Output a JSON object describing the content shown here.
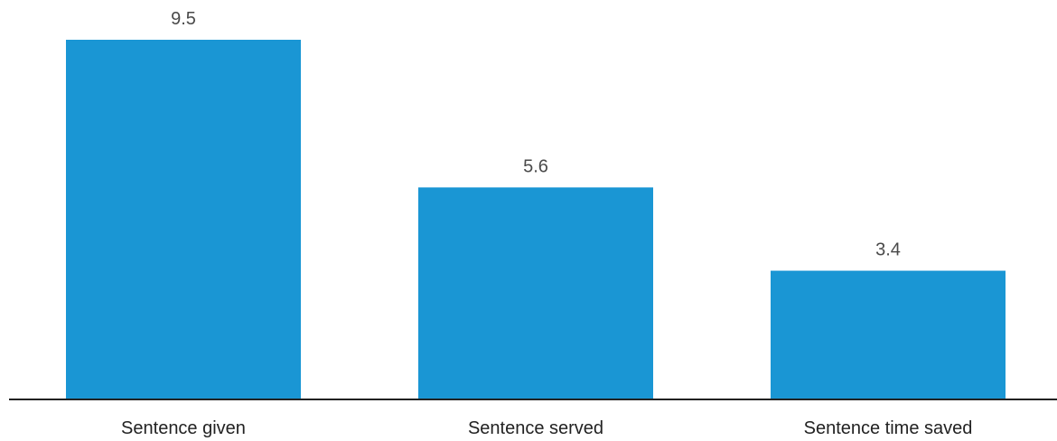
{
  "chart_data": {
    "type": "bar",
    "categories": [
      "Sentence given",
      "Sentence served",
      "Sentence time saved"
    ],
    "values": [
      9.5,
      5.6,
      3.4
    ],
    "value_labels": [
      "9.5",
      "5.6",
      "3.4"
    ],
    "title": "",
    "xlabel": "",
    "ylabel": "",
    "ylim": [
      0,
      9.5
    ],
    "grid": false,
    "legend": "none",
    "colors": {
      "bar": "#1a96d4",
      "baseline": "#222222"
    }
  }
}
